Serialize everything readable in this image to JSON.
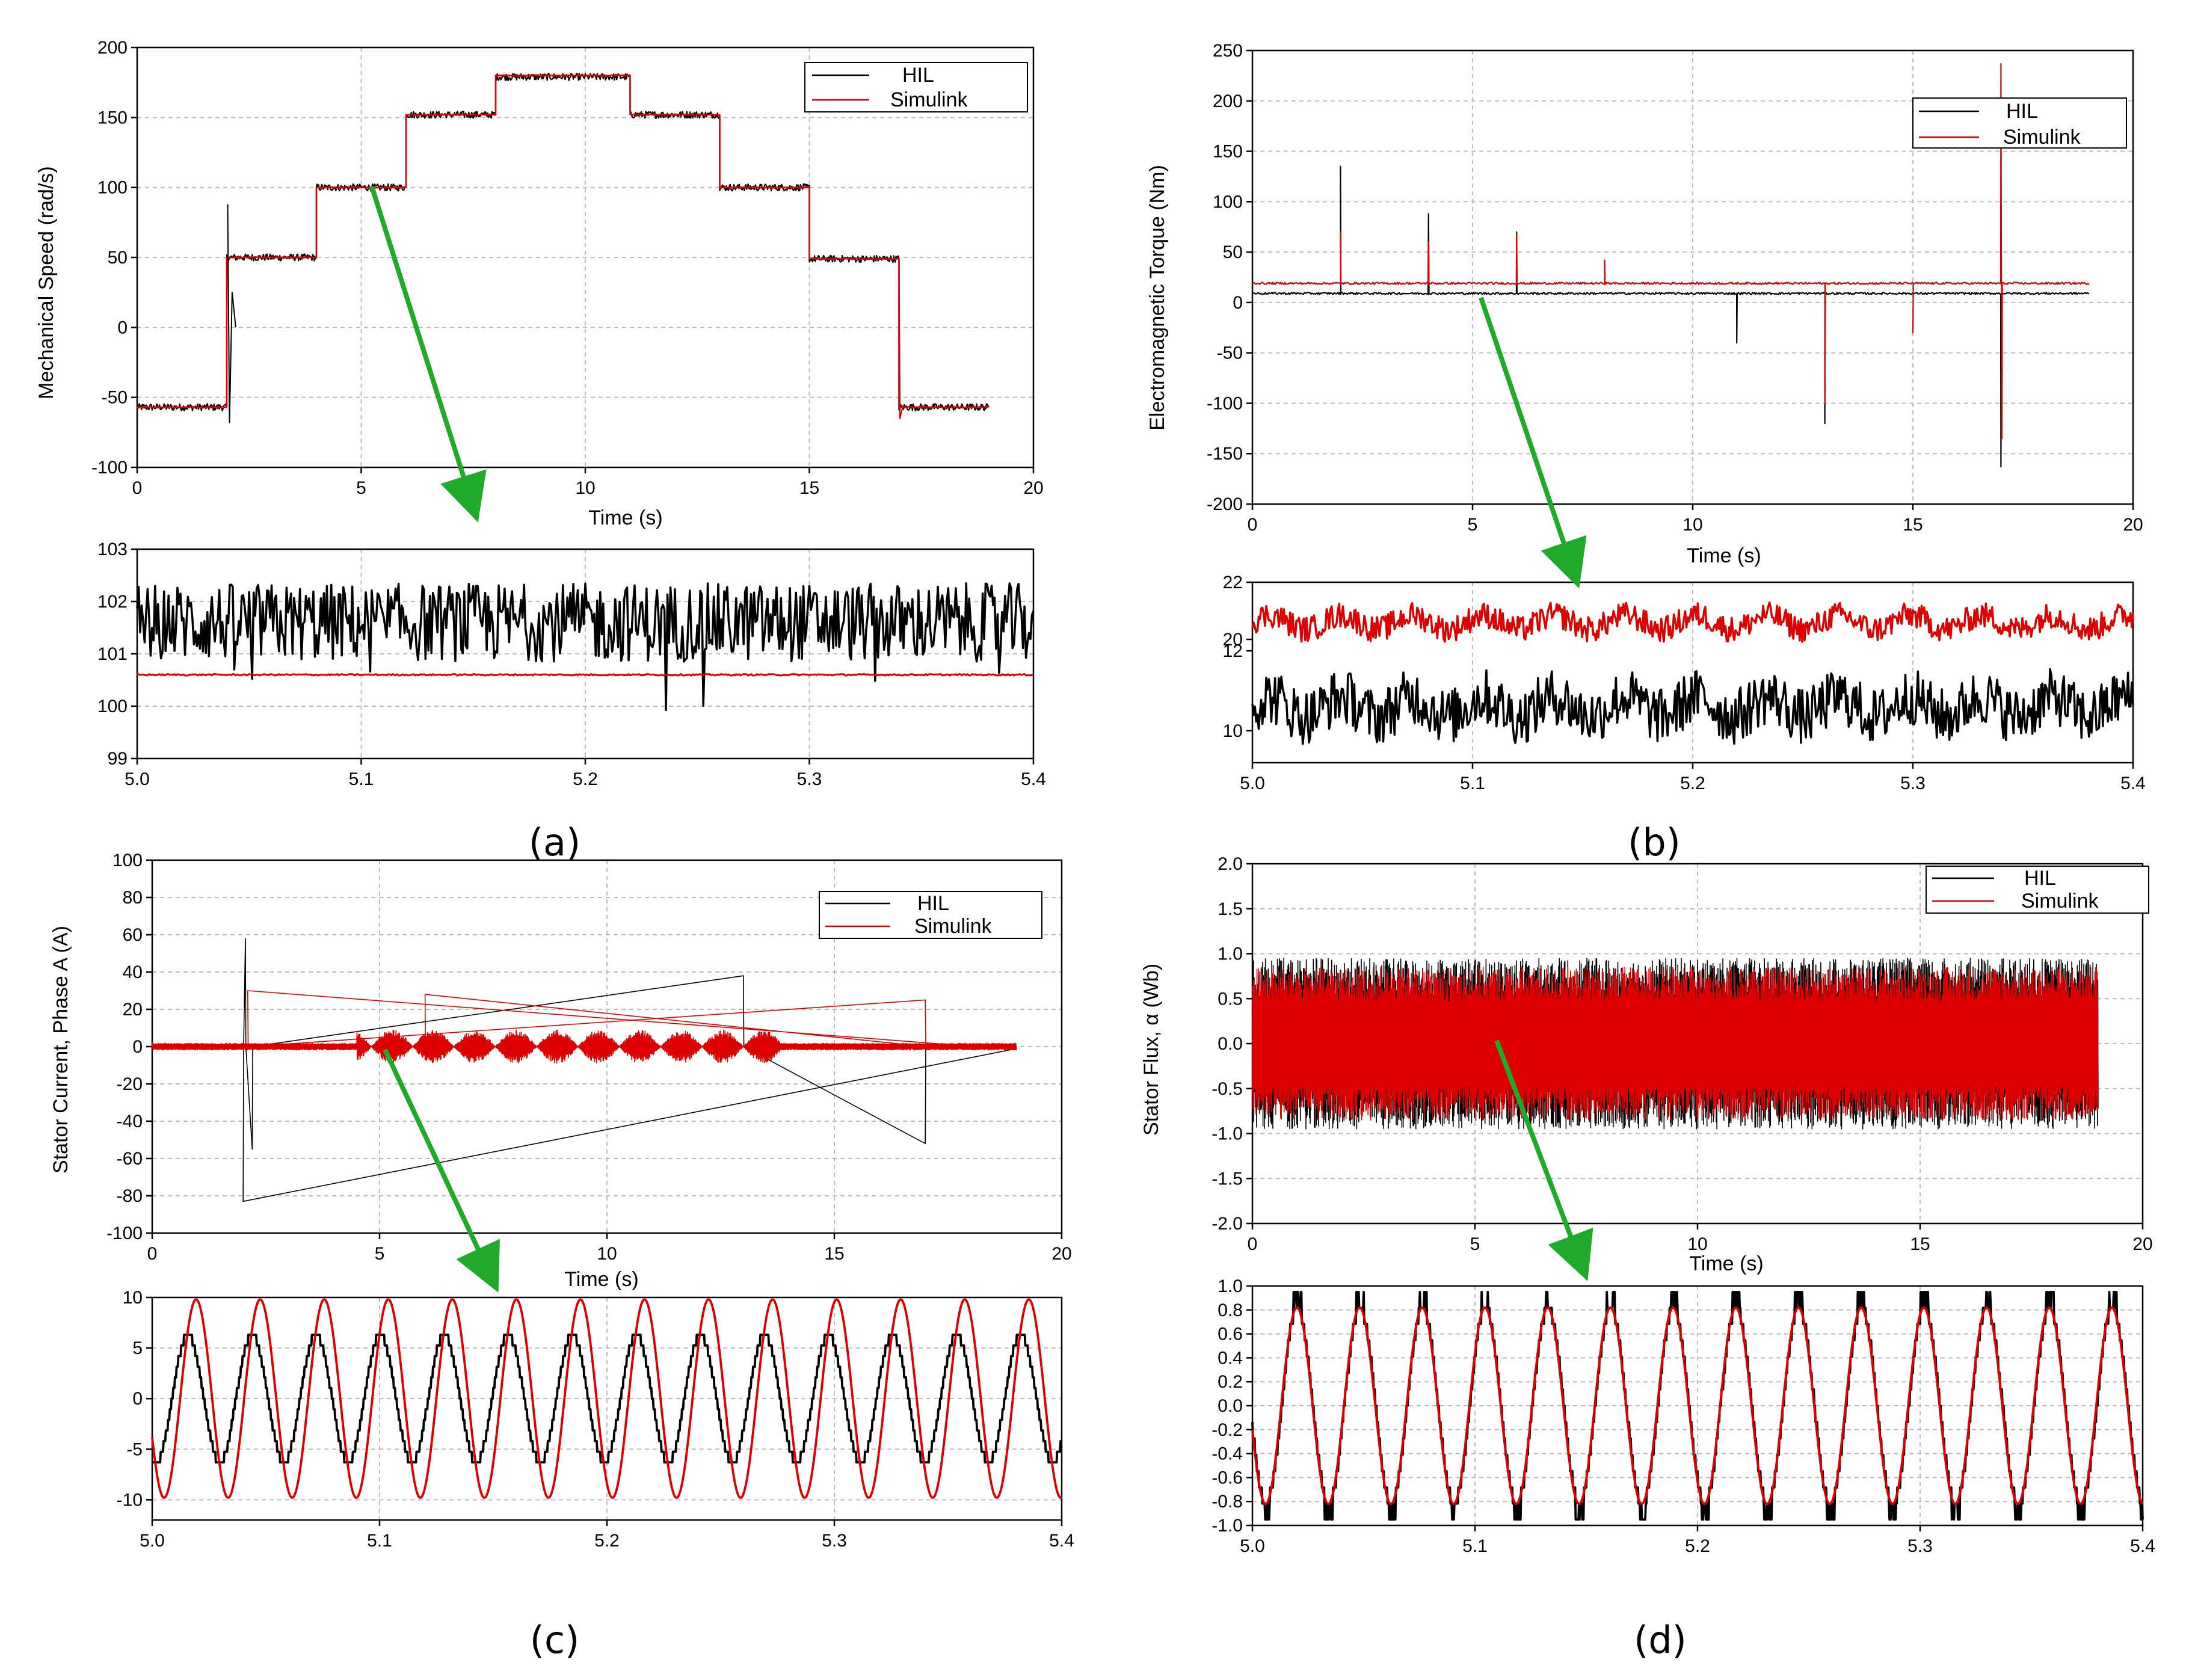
{
  "colors": {
    "hil": "#000000",
    "simulink": "#dd0000",
    "arrow": "#1faa2a",
    "grid": "#bdbdbd"
  },
  "panels": [
    {
      "caption": "(a)",
      "ylabel": "Mechanical Speed (rad/s)",
      "xlabel": "Time (s)",
      "legend": [
        "HIL",
        "Simulink"
      ],
      "zoom_ylabel": ""
    },
    {
      "caption": "(b)",
      "ylabel": "Electromagnetic Torque (Nm)",
      "xlabel": "Time (s)",
      "legend": [
        "HIL",
        "Simulink"
      ],
      "zoom_ylabel": ""
    },
    {
      "caption": "(c)",
      "ylabel": "Stator Current, Phase A (A)",
      "xlabel": "Time (s)",
      "legend": [
        "HIL",
        "Simulink"
      ],
      "zoom_ylabel": ""
    },
    {
      "caption": "(d)",
      "ylabel": "Stator Flux, α (Wb)",
      "xlabel": "Time (s)",
      "legend": [
        "HIL",
        "Simulink"
      ],
      "zoom_ylabel": ""
    }
  ],
  "chart_data": [
    {
      "id": "a-main",
      "type": "line",
      "title": "",
      "xlabel": "Time (s)",
      "ylabel": "Mechanical Speed (rad/s)",
      "xlim": [
        0,
        20
      ],
      "ylim": [
        -100,
        200
      ],
      "xticks": [
        "0",
        "5",
        "10",
        "15",
        "20"
      ],
      "yticks": [
        "-100",
        "-50",
        "0",
        "50",
        "100",
        "150",
        "200"
      ],
      "legend": [
        "HIL",
        "Simulink"
      ],
      "legend_position": "top-right",
      "series": [
        {
          "name": "HIL",
          "kind": "steps",
          "steps": [
            [
              0,
              -57
            ],
            [
              2,
              50
            ],
            [
              4,
              100
            ],
            [
              6,
              152
            ],
            [
              8,
              179
            ],
            [
              11,
              152
            ],
            [
              13,
              100
            ],
            [
              15,
              49
            ],
            [
              17,
              -57
            ],
            [
              19,
              -57
            ]
          ],
          "noise": 2.5
        },
        {
          "name": "Simulink",
          "kind": "steps",
          "steps": [
            [
              0,
              -57
            ],
            [
              2,
              50
            ],
            [
              4,
              100
            ],
            [
              6,
              152
            ],
            [
              8,
              180
            ],
            [
              11,
              152
            ],
            [
              13,
              100
            ],
            [
              15,
              49
            ],
            [
              17,
              -57
            ],
            [
              19,
              -57
            ]
          ],
          "noise": 0.3
        }
      ]
    },
    {
      "id": "a-zoom",
      "type": "line",
      "xlim": [
        5.0,
        5.4
      ],
      "ylim": [
        99,
        103
      ],
      "xticks": [
        "5.0",
        "5.1",
        "5.2",
        "5.3",
        "5.4"
      ],
      "yticks": [
        "99",
        "100",
        "101",
        "102",
        "103"
      ],
      "series": [
        {
          "name": "HIL",
          "kind": "noise",
          "mean": 101.6,
          "amp": 0.75
        },
        {
          "name": "Simulink",
          "kind": "flat",
          "value": 100.6
        }
      ]
    },
    {
      "id": "b-main",
      "type": "line",
      "title": "",
      "xlabel": "Time (s)",
      "ylabel": "Electromagnetic Torque (Nm)",
      "xlim": [
        0,
        20
      ],
      "ylim": [
        -200,
        250
      ],
      "xticks": [
        "0",
        "5",
        "10",
        "15",
        "20"
      ],
      "yticks": [
        "-200",
        "-150",
        "-100",
        "-50",
        "0",
        "50",
        "100",
        "150",
        "200",
        "250"
      ],
      "legend": [
        "HIL",
        "Simulink"
      ],
      "legend_position": "top-right",
      "series": [
        {
          "name": "HIL",
          "kind": "spikes",
          "base": 9,
          "spikes": [
            [
              2,
              135
            ],
            [
              4,
              88
            ],
            [
              6,
              70
            ],
            [
              11,
              -40
            ],
            [
              13,
              -120
            ],
            [
              17,
              -163
            ]
          ]
        },
        {
          "name": "Simulink",
          "kind": "spikes",
          "base": 19,
          "spikes": [
            [
              2,
              70
            ],
            [
              4,
              60
            ],
            [
              6,
              68
            ],
            [
              8,
              42
            ],
            [
              13,
              -100
            ],
            [
              15,
              -30
            ],
            [
              17,
              237
            ],
            [
              17.02,
              -135
            ]
          ]
        }
      ]
    },
    {
      "id": "b-zoom",
      "type": "line",
      "xlim": [
        5.0,
        5.4
      ],
      "xticks": [
        "5.0",
        "5.1",
        "5.2",
        "5.3",
        "5.4"
      ],
      "yticks_upper": [
        "20",
        "22"
      ],
      "yticks_lower": [
        "10",
        "12"
      ],
      "series": [
        {
          "name": "Simulink",
          "kind": "noise",
          "mean": 20.6,
          "amp": 0.45
        },
        {
          "name": "HIL",
          "kind": "noise",
          "mean": 10.6,
          "amp": 0.7
        }
      ]
    },
    {
      "id": "c-main",
      "type": "line",
      "title": "",
      "xlabel": "Time (s)",
      "ylabel": "Stator Current, Phase A (A)",
      "xlim": [
        0,
        20
      ],
      "ylim": [
        -100,
        100
      ],
      "xticks": [
        "0",
        "5",
        "10",
        "15",
        "20"
      ],
      "yticks": [
        "-100",
        "-80",
        "-60",
        "-40",
        "-20",
        "0",
        "20",
        "40",
        "60",
        "80",
        "100"
      ],
      "legend": [
        "HIL",
        "Simulink"
      ],
      "legend_position": "top-right",
      "series": [
        {
          "name": "HIL",
          "kind": "oscillation",
          "amp": 6,
          "spikes": [
            [
              2,
              -83
            ],
            [
              2.05,
              58
            ],
            [
              2.2,
              -55
            ],
            [
              13,
              38
            ],
            [
              17,
              -52
            ]
          ]
        },
        {
          "name": "Simulink",
          "kind": "oscillation",
          "amp": 9,
          "spikes": [
            [
              2.1,
              30
            ],
            [
              17,
              25
            ],
            [
              6,
              28
            ]
          ]
        }
      ]
    },
    {
      "id": "c-zoom",
      "type": "line",
      "xlim": [
        5.0,
        5.4
      ],
      "ylim": [
        -12,
        10
      ],
      "xticks": [
        "5.0",
        "5.1",
        "5.2",
        "5.3",
        "5.4"
      ],
      "yticks": [
        "-10",
        "-5",
        "0",
        "5",
        "10"
      ],
      "series": [
        {
          "name": "HIL",
          "kind": "sine",
          "amp": 6.3,
          "freq": 35.5,
          "phase": 1.2,
          "quantized": true
        },
        {
          "name": "Simulink",
          "kind": "sine",
          "amp": 9.8,
          "freq": 35.5,
          "phase": 0.4
        }
      ]
    },
    {
      "id": "d-main",
      "type": "line",
      "title": "",
      "xlabel": "Time (s)",
      "ylabel": "Stator Flux, α (Wb)",
      "xlim": [
        0,
        20
      ],
      "ylim": [
        -2.0,
        2.0
      ],
      "xticks": [
        "0",
        "5",
        "10",
        "15",
        "20"
      ],
      "yticks": [
        "-2.0",
        "-1.5",
        "-1.0",
        "-0.5",
        "0.0",
        "0.5",
        "1.0",
        "1.5",
        "2.0"
      ],
      "legend": [
        "HIL",
        "Simulink"
      ],
      "legend_position": "top-right",
      "series": [
        {
          "name": "HIL",
          "kind": "oscillation",
          "amp": 0.95
        },
        {
          "name": "Simulink",
          "kind": "oscillation",
          "amp": 0.85
        }
      ]
    },
    {
      "id": "d-zoom",
      "type": "line",
      "xlim": [
        5.0,
        5.4
      ],
      "ylim": [
        -1.0,
        1.0
      ],
      "xticks": [
        "5.0",
        "5.1",
        "5.2",
        "5.3",
        "5.4"
      ],
      "yticks": [
        "-1.0",
        "-0.8",
        "-0.6",
        "-0.4",
        "-0.2",
        "0.0",
        "0.2",
        "0.4",
        "0.6",
        "0.8",
        "1.0"
      ],
      "series": [
        {
          "name": "HIL",
          "kind": "sine",
          "amp": 0.82,
          "freq": 35.5,
          "phase": 0.2,
          "quantized": true,
          "clip": 0.95
        },
        {
          "name": "Simulink",
          "kind": "sine",
          "amp": 0.82,
          "freq": 35.5,
          "phase": 0.25
        }
      ]
    }
  ]
}
